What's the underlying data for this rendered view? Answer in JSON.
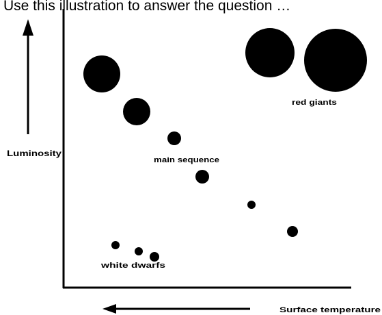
{
  "caption": "Use this illustration to answer the question …",
  "diagram": {
    "labels": {
      "luminosity": "Luminosity",
      "main_sequence": "main sequence",
      "red_giants": "red giants",
      "white_dwarfs": "white dwarfs",
      "surface_temperature": "Surface temperature"
    }
  }
}
